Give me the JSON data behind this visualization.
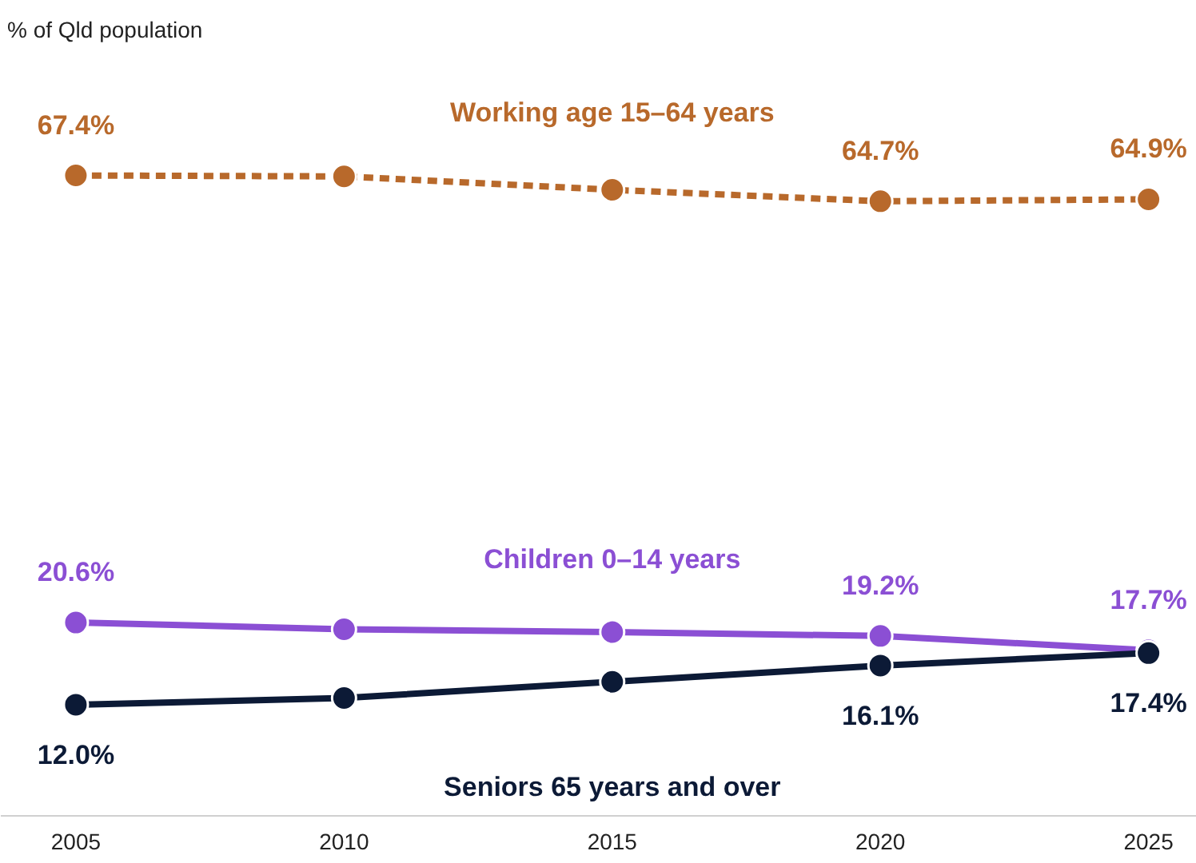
{
  "chart_data": {
    "type": "line",
    "annotations": [
      "% of Qld population"
    ],
    "x": [
      2005,
      2010,
      2015,
      2020,
      2025
    ],
    "xlim": [
      2003.6,
      2025.9
    ],
    "xticks": [
      2005,
      2010,
      2015,
      2020,
      2025
    ],
    "marker": "circle",
    "grid": false,
    "tick_labels": "x",
    "series": [
      {
        "name": "Working age 15–64 years",
        "color": "#b8692b",
        "line_style": "dashed",
        "values": [
          67.4,
          67.3,
          65.9,
          64.7,
          64.9
        ],
        "value_labels": [
          "67.4%",
          null,
          null,
          "64.7%",
          "64.9%"
        ]
      },
      {
        "name": "Children 0–14 years",
        "color": "#8b4fd4",
        "line_style": "solid",
        "values": [
          20.6,
          19.9,
          19.6,
          19.2,
          17.7
        ],
        "value_labels": [
          "20.6%",
          null,
          null,
          "19.2%",
          "17.7%"
        ]
      },
      {
        "name": "Seniors 65 years and over",
        "color": "#0c1a36",
        "line_style": "solid",
        "values": [
          12.0,
          12.7,
          14.4,
          16.1,
          17.4
        ],
        "value_labels": [
          "12.0%",
          null,
          null,
          "16.1%",
          "17.4%"
        ]
      }
    ]
  }
}
